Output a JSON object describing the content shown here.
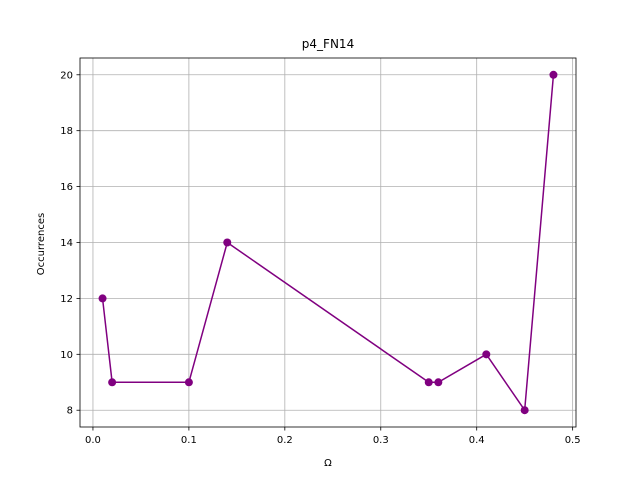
{
  "chart_data": {
    "type": "line",
    "title": "p4_FN14",
    "xlabel": "Ω",
    "ylabel": "Occurrences",
    "xlim": [
      -0.0135,
      0.5035
    ],
    "ylim": [
      7.4,
      20.6
    ],
    "xticks": [
      0.0,
      0.1,
      0.2,
      0.3,
      0.4,
      0.5
    ],
    "xtick_labels": [
      "0.0",
      "0.1",
      "0.2",
      "0.3",
      "0.4",
      "0.5"
    ],
    "yticks": [
      8,
      10,
      12,
      14,
      16,
      18,
      20
    ],
    "ytick_labels": [
      "8",
      "10",
      "12",
      "14",
      "16",
      "18",
      "20"
    ],
    "grid": true,
    "series": [
      {
        "color": "#800080",
        "marker": "circle",
        "x": [
          0.01,
          0.02,
          0.1,
          0.14,
          0.35,
          0.36,
          0.41,
          0.45,
          0.48
        ],
        "y": [
          12,
          9,
          9,
          14,
          9,
          9,
          10,
          8,
          20
        ]
      }
    ]
  },
  "colors": {
    "series": "#800080",
    "grid": "#b0b0b0",
    "axes": "#000000"
  }
}
